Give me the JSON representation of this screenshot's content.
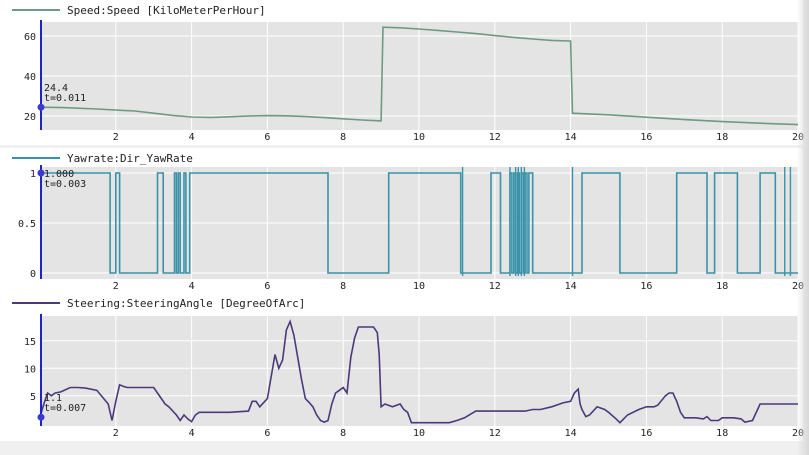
{
  "chart_data": [
    {
      "type": "line",
      "title": "Speed:Speed [KiloMeterPerHour]",
      "legend": "top-left",
      "line_color": "#6e9a83",
      "xlim": [
        0,
        20
      ],
      "ylim": [
        13,
        67
      ],
      "x_ticks": [
        "2",
        "4",
        "6",
        "8",
        "10",
        "12",
        "14",
        "16",
        "18",
        "20"
      ],
      "y_ticks": [
        {
          "label": "20",
          "value": 20
        },
        {
          "label": "40",
          "value": 40
        },
        {
          "label": "60",
          "value": 60
        }
      ],
      "cursor": {
        "value": "24.4",
        "time": "t=0.011"
      },
      "series": [
        {
          "x": [
            0,
            0.6,
            1.5,
            2.5,
            3.0,
            3.5,
            4.0,
            4.5,
            5.0,
            5.5,
            6.0,
            6.5,
            7.0,
            7.5,
            8.0,
            8.5,
            8.95,
            9.0,
            9.05,
            9.5,
            10.0,
            10.5,
            11.0,
            11.5,
            12.0,
            12.5,
            13.0,
            13.5,
            13.98,
            14.0,
            14.05,
            15.0,
            16.0,
            17.0,
            18.0,
            19.0,
            20.0
          ],
          "y": [
            24.4,
            24.2,
            23.5,
            22.5,
            21.4,
            20.3,
            19.5,
            19.3,
            19.6,
            20.0,
            20.2,
            20.1,
            19.7,
            19.2,
            18.6,
            18.0,
            17.6,
            17.6,
            64.4,
            64.1,
            63.5,
            62.8,
            62.0,
            61.2,
            60.2,
            59.3,
            58.5,
            57.8,
            57.5,
            57.5,
            21.4,
            20.6,
            19.4,
            18.2,
            17.2,
            16.4,
            15.7
          ]
        }
      ]
    },
    {
      "type": "line",
      "title": "Yawrate:Dir_YawRate",
      "legend": "top-left",
      "line_color": "#3a93a8",
      "xlim": [
        0,
        20
      ],
      "ylim": [
        -0.06,
        1.06
      ],
      "x_ticks": [
        "2",
        "4",
        "6",
        "8",
        "10",
        "12",
        "14",
        "16",
        "18",
        "20"
      ],
      "y_ticks": [
        {
          "label": "0",
          "value": 0
        },
        {
          "label": "0.5",
          "value": 0.5
        },
        {
          "label": "1",
          "value": 1
        }
      ],
      "cursor": {
        "value": "1.000",
        "time": "t=0.003"
      },
      "series": [
        {
          "high_intervals": [
            [
              0,
              1.85
            ],
            [
              2.0,
              2.1
            ],
            [
              3.1,
              3.25
            ],
            [
              3.55,
              3.6
            ],
            [
              3.65,
              3.7
            ],
            [
              3.8,
              3.85
            ],
            [
              3.95,
              7.6
            ],
            [
              9.2,
              11.1
            ],
            [
              11.9,
              12.15
            ],
            [
              12.4,
              12.45
            ],
            [
              12.5,
              12.55
            ],
            [
              12.6,
              12.65
            ],
            [
              12.7,
              12.75
            ],
            [
              12.8,
              12.85
            ],
            [
              12.9,
              13.0
            ],
            [
              14.3,
              15.3
            ],
            [
              16.8,
              17.6
            ],
            [
              17.8,
              18.4
            ],
            [
              19.0,
              19.4
            ]
          ],
          "spikes": [
            11.15,
            12.4,
            12.55,
            12.62,
            12.7,
            12.78,
            14.05,
            19.65,
            19.8
          ],
          "spike_peak": 1.1,
          "spike_low": -0.03
        }
      ]
    },
    {
      "type": "line",
      "title": "Steering:SteeringAngle [DegreeOfArc]",
      "legend": "top-left",
      "line_color": "#4a3a7a",
      "xlim": [
        0,
        20
      ],
      "ylim": [
        -0.5,
        19.5
      ],
      "x_ticks": [
        "2",
        "4",
        "6",
        "8",
        "10",
        "12",
        "14",
        "16",
        "18",
        "20"
      ],
      "y_ticks": [
        {
          "label": "5",
          "value": 5
        },
        {
          "label": "10",
          "value": 10
        },
        {
          "label": "15",
          "value": 15
        }
      ],
      "cursor": {
        "value": "1.1",
        "time": "t=0.007"
      },
      "series": [
        {
          "x": [
            0,
            0.1,
            0.2,
            0.3,
            0.4,
            0.55,
            0.8,
            1.0,
            1.2,
            1.5,
            1.8,
            1.9,
            2.0,
            2.1,
            2.2,
            2.3,
            2.5,
            2.8,
            3.0,
            3.2,
            3.3,
            3.4,
            3.6,
            3.7,
            3.8,
            3.9,
            4.0,
            4.1,
            4.2,
            4.5,
            5.0,
            5.5,
            5.6,
            5.7,
            5.8,
            6.0,
            6.1,
            6.2,
            6.3,
            6.4,
            6.5,
            6.6,
            6.7,
            6.8,
            6.9,
            7.0,
            7.1,
            7.2,
            7.3,
            7.4,
            7.5,
            7.6,
            7.7,
            7.8,
            7.9,
            8.0,
            8.1,
            8.2,
            8.3,
            8.4,
            8.6,
            8.8,
            8.9,
            8.95,
            9.0,
            9.1,
            9.3,
            9.5,
            9.6,
            9.7,
            9.8,
            10.0,
            10.5,
            10.8,
            11.0,
            11.2,
            11.5,
            12.0,
            12.5,
            12.8,
            13.0,
            13.2,
            13.5,
            13.8,
            14.0,
            14.1,
            14.2,
            14.25,
            14.3,
            14.4,
            14.5,
            14.7,
            14.9,
            15.0,
            15.2,
            15.3,
            15.5,
            15.8,
            16.0,
            16.2,
            16.3,
            16.5,
            16.6,
            16.7,
            16.8,
            16.9,
            17.0,
            17.3,
            17.5,
            17.6,
            17.7,
            17.9,
            18.0,
            18.1,
            18.3,
            18.5,
            18.6,
            18.8,
            19.0,
            19.5,
            20.0
          ],
          "y": [
            1.1,
            3.5,
            5.5,
            5.0,
            5.5,
            5.7,
            6.5,
            6.5,
            6.4,
            6.0,
            3.5,
            0.5,
            4.0,
            7.0,
            6.7,
            6.5,
            6.5,
            6.5,
            6.5,
            4.5,
            3.5,
            3.0,
            1.5,
            0.5,
            1.5,
            0.8,
            0.3,
            1.5,
            2.0,
            2.0,
            2.0,
            2.2,
            4.0,
            4.0,
            3.0,
            4.5,
            8.5,
            12.5,
            10.0,
            11.5,
            17.0,
            18.5,
            16.0,
            12.0,
            8.0,
            4.5,
            3.8,
            3.0,
            1.5,
            0.5,
            0.2,
            0.5,
            3.5,
            5.5,
            6.0,
            6.5,
            5.5,
            12.0,
            15.5,
            17.5,
            17.5,
            17.5,
            16.5,
            12.5,
            3.0,
            3.5,
            3.0,
            3.5,
            2.5,
            2.0,
            0.1,
            0.1,
            0.1,
            0.1,
            0.5,
            1.0,
            2.2,
            2.2,
            2.2,
            2.2,
            2.5,
            2.5,
            3.0,
            3.7,
            4.0,
            5.5,
            6.2,
            3.5,
            2.5,
            1.2,
            1.5,
            3.0,
            2.5,
            2.0,
            0.8,
            0.1,
            1.5,
            2.5,
            3.0,
            3.0,
            3.3,
            5.0,
            5.5,
            5.5,
            4.0,
            2.0,
            1.0,
            1.0,
            0.8,
            1.2,
            0.5,
            0.5,
            1.0,
            1.0,
            1.0,
            0.8,
            0.2,
            0.5,
            3.5,
            3.5,
            3.5
          ]
        }
      ]
    }
  ]
}
